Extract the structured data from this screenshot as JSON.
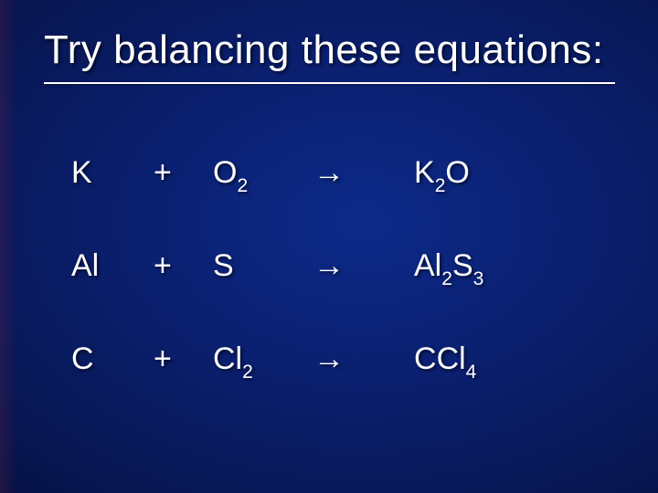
{
  "slide": {
    "title": "Try balancing these equations:",
    "title_fontsize": 44,
    "title_color": "#ffffff",
    "underline_color": "#ffffff",
    "background_gradient": [
      "#0d2a8a",
      "#0a1f6e",
      "#07154f",
      "#030828",
      "#010312"
    ],
    "accent_color": "#8a1c34",
    "text_color": "#ffffff",
    "body_fontsize": 34,
    "arrow_glyph": "→",
    "plus_glyph": "+",
    "equations": [
      {
        "reactant1": "K",
        "reactant2": "O",
        "reactant2_sub": "2",
        "product_a": "K",
        "product_a_sub": "2",
        "product_b": "O",
        "product_b_sub": ""
      },
      {
        "reactant1": "Al",
        "reactant2": "S",
        "reactant2_sub": "",
        "product_a": "Al",
        "product_a_sub": "2",
        "product_b": "S",
        "product_b_sub": "3"
      },
      {
        "reactant1": "C",
        "reactant2": "Cl",
        "reactant2_sub": "2",
        "product_a": "C",
        "product_a_sub": "",
        "product_b": "Cl",
        "product_b_sub": "4"
      }
    ]
  }
}
